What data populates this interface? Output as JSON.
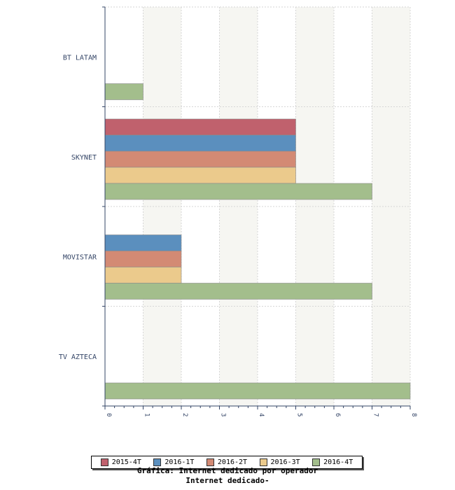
{
  "chart_data": {
    "type": "bar",
    "orientation": "horizontal",
    "categories": [
      "BT LATAM",
      "SKYNET",
      "MOVISTAR",
      "TV AZTECA"
    ],
    "series": [
      {
        "name": "2015-4T",
        "color": "#c0616d",
        "values": [
          0,
          5,
          0,
          0
        ]
      },
      {
        "name": "2016-1T",
        "color": "#5b8fbe",
        "values": [
          0,
          5,
          2,
          0
        ]
      },
      {
        "name": "2016-2T",
        "color": "#d38a74",
        "values": [
          0,
          5,
          2,
          0
        ]
      },
      {
        "name": "2016-3T",
        "color": "#ebca8c",
        "values": [
          0,
          5,
          2,
          0
        ]
      },
      {
        "name": "2016-4T",
        "color": "#a3be8c",
        "values": [
          1,
          7,
          7,
          8
        ]
      }
    ],
    "xlim": [
      0,
      8
    ],
    "xticks": [
      "0",
      "1",
      "2",
      "3",
      "4",
      "5",
      "6",
      "7",
      "8"
    ],
    "grid": true,
    "legend": "bottom"
  },
  "captions": {
    "line1": "Gráfica: Internet dedicado por operador",
    "line2": "Internet dedicado-"
  }
}
